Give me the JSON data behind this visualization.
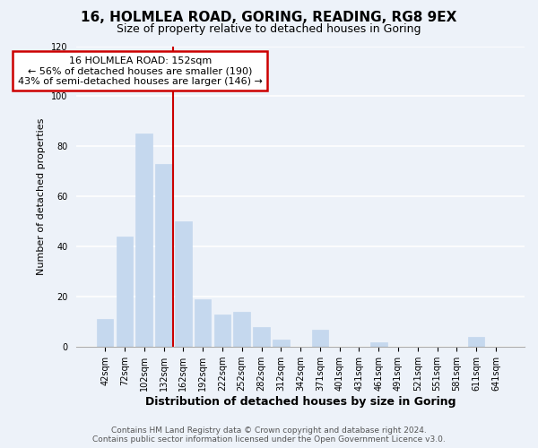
{
  "title1": "16, HOLMLEA ROAD, GORING, READING, RG8 9EX",
  "title2": "Size of property relative to detached houses in Goring",
  "xlabel": "Distribution of detached houses by size in Goring",
  "ylabel": "Number of detached properties",
  "categories": [
    "42sqm",
    "72sqm",
    "102sqm",
    "132sqm",
    "162sqm",
    "192sqm",
    "222sqm",
    "252sqm",
    "282sqm",
    "312sqm",
    "342sqm",
    "371sqm",
    "401sqm",
    "431sqm",
    "461sqm",
    "491sqm",
    "521sqm",
    "551sqm",
    "581sqm",
    "611sqm",
    "641sqm"
  ],
  "values": [
    11,
    44,
    85,
    73,
    50,
    19,
    13,
    14,
    8,
    3,
    0,
    7,
    0,
    0,
    2,
    0,
    0,
    0,
    0,
    4,
    0
  ],
  "bar_color": "#c5d8ee",
  "bar_edge_color": "#c5d8ee",
  "redline_index": 4,
  "annotation_title": "16 HOLMLEA ROAD: 152sqm",
  "annotation_line1": "← 56% of detached houses are smaller (190)",
  "annotation_line2": "43% of semi-detached houses are larger (146) →",
  "annotation_box_color": "white",
  "annotation_box_edge_color": "#cc0000",
  "redline_color": "#cc0000",
  "ylim": [
    0,
    120
  ],
  "yticks": [
    0,
    20,
    40,
    60,
    80,
    100,
    120
  ],
  "footer1": "Contains HM Land Registry data © Crown copyright and database right 2024.",
  "footer2": "Contains public sector information licensed under the Open Government Licence v3.0.",
  "background_color": "#edf2f9",
  "grid_color": "white",
  "title1_fontsize": 11,
  "title2_fontsize": 9,
  "xlabel_fontsize": 9,
  "ylabel_fontsize": 8,
  "tick_fontsize": 7,
  "footer_fontsize": 6.5
}
